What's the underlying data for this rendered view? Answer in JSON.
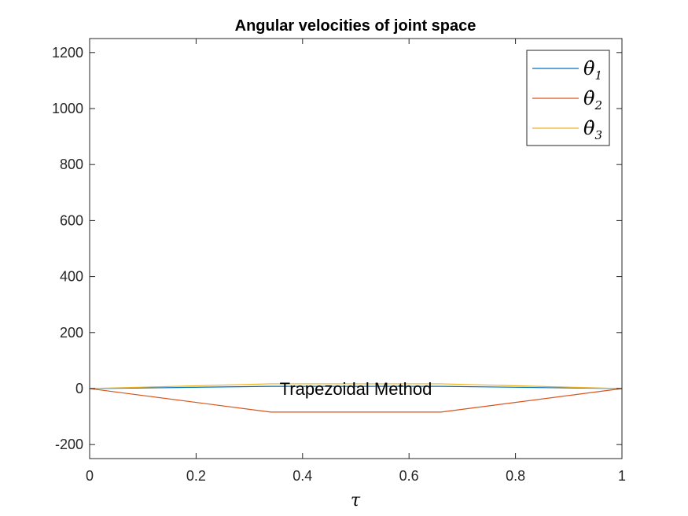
{
  "chart_data": {
    "type": "line",
    "title": "Angular velocities of joint space",
    "xlabel": "τ",
    "ylabel": "",
    "xlim": [
      0,
      1
    ],
    "ylim": [
      -250,
      1250
    ],
    "xticks": [
      "0",
      "0.2",
      "0.4",
      "0.6",
      "0.8",
      "1"
    ],
    "xtick_values": [
      0,
      0.2,
      0.4,
      0.6,
      0.8,
      1
    ],
    "yticks": [
      "-200",
      "0",
      "200",
      "400",
      "600",
      "800",
      "1000",
      "1200"
    ],
    "ytick_values": [
      -200,
      0,
      200,
      400,
      600,
      800,
      1000,
      1200
    ],
    "grid": false,
    "legend_position": "top-right",
    "annotation": {
      "text": "Trapezoidal Method",
      "x": 0.5,
      "y": 0
    },
    "series": [
      {
        "name": "θ̇1",
        "symbol": "θ̇",
        "sub": "1",
        "color": "#0072BD",
        "x": [
          0,
          0.34,
          0.66,
          1
        ],
        "y": [
          0,
          8,
          8,
          0
        ]
      },
      {
        "name": "θ̇2",
        "symbol": "θ̇",
        "sub": "2",
        "color": "#D95319",
        "x": [
          0,
          0.34,
          0.66,
          1
        ],
        "y": [
          0,
          -84,
          -84,
          0
        ]
      },
      {
        "name": "θ̇3",
        "symbol": "θ̇",
        "sub": "3",
        "color": "#EDB120",
        "x": [
          0,
          0.34,
          0.66,
          1
        ],
        "y": [
          0,
          17,
          17,
          0
        ]
      }
    ]
  }
}
